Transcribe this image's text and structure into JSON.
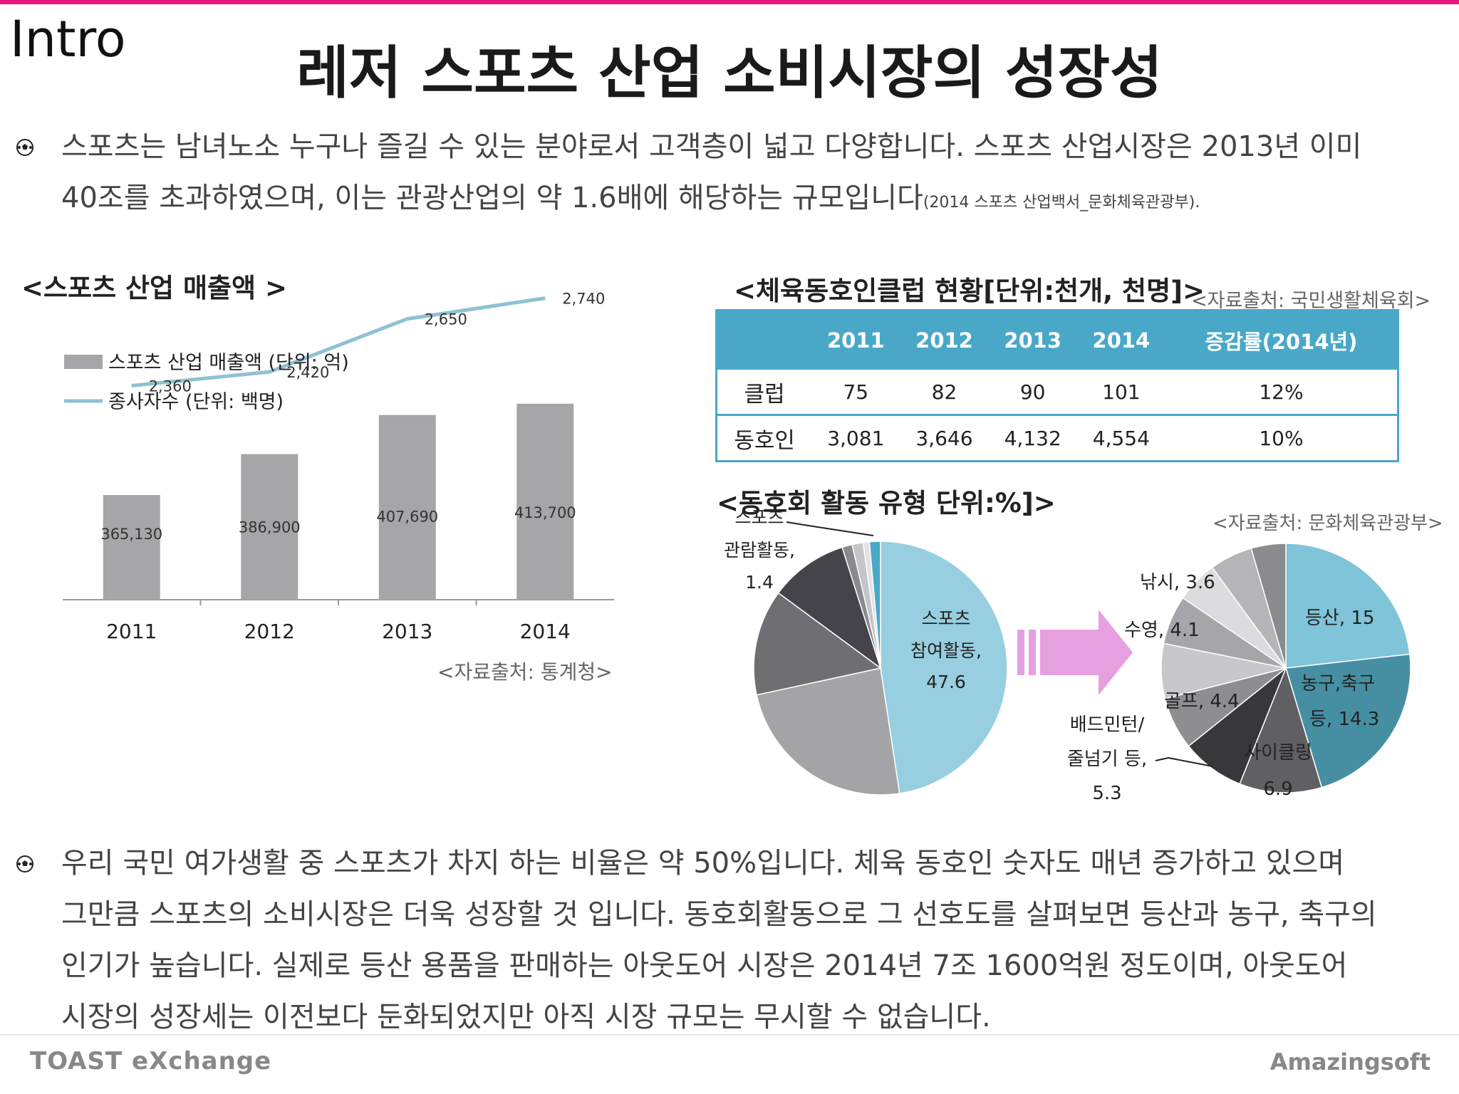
{
  "header": {
    "section_label": "Intro",
    "title": "레저 스포츠 산업 소비시장의 성장성"
  },
  "intro_paragraph": {
    "line1": "스포츠는 남녀노소 누구나 즐길 수 있는 분야로서 고객층이 넓고 다양합니다. 스포츠 산업시장은 2013년 이미",
    "line2": "40조를 초과하였으며, 이는 관광산업의 약 1.6배에 해당하는 규모입니다",
    "source": "(2014 스포츠 산업백서_문화체육관광부).",
    "icon": "soccer-ball-icon"
  },
  "closing_paragraph": {
    "lines": [
      "우리 국민 여가생활 중 스포츠가 차지 하는 비율은 약 50%입니다. 체육 동호인 숫자도 매년 증가하고 있으며",
      "그만큼 스포츠의 소비시장은 더욱 성장할 것 입니다. 동호회활동으로 그 선호도를 살펴보면 등산과 농구, 축구의",
      "인기가 높습니다. 실제로 등산 용품을 판매하는 아웃도어 시장은 2014년 7조 1600억원 정도이며, 아웃도어",
      "시장의 성장세는 이전보다 둔화되었지만 아직 시장 규모는 무시할 수 없습니다."
    ],
    "icon": "soccer-ball-icon"
  },
  "revenue_section": {
    "heading": "<스포츠 산업 매출액 >",
    "source": "<자료출처: 통계청>"
  },
  "clubs_section": {
    "heading": "<체육동호인클럽 현황[단위:천개, 천명]>",
    "source": "<자료출처: 국민생활체육회>",
    "columns": [
      "",
      "2011",
      "2012",
      "2013",
      "2014",
      "증감률(2014년)"
    ],
    "rows": [
      {
        "label": "클럽",
        "values": [
          "75",
          "82",
          "90",
          "101",
          "12%"
        ]
      },
      {
        "label": "동호인",
        "values": [
          "3,081",
          "3,646",
          "4,132",
          "4,554",
          "10%"
        ]
      }
    ],
    "header_color": "#49a8c8"
  },
  "activity_section": {
    "heading": "<동호회 활동 유형 단위:%]>",
    "source": "<자료출처: 문화체육관광부>"
  },
  "chart_data": [
    {
      "type": "bar",
      "categories": [
        "2011",
        "2012",
        "2013",
        "2014"
      ],
      "series": [
        {
          "name": "스포츠 산업 매출액 (단위: 억)",
          "kind": "bar",
          "values": [
            365130,
            386900,
            407690,
            413700
          ],
          "labels": [
            "365,130",
            "386,900",
            "407,690",
            "413,700"
          ],
          "color": "#a6a5a7"
        },
        {
          "name": "종사자수 (단위: 백명)",
          "kind": "line",
          "values": [
            2360,
            2420,
            2650,
            2740
          ],
          "labels": [
            "2,360",
            "2,420",
            "2,650",
            "2,740"
          ],
          "color": "#8ec1d3"
        }
      ],
      "legend": "top-left"
    },
    {
      "type": "pie",
      "slices": [
        {
          "label": "스포츠 참여활동,",
          "value": 47.6,
          "value_label": "47.6",
          "color": "#97cfe0"
        },
        {
          "label": "",
          "value": 24.0,
          "color": "#a4a3a6"
        },
        {
          "label": "",
          "value": 13.5,
          "color": "#6f6e72"
        },
        {
          "label": "",
          "value": 10.0,
          "color": "#45444a"
        },
        {
          "label": "",
          "value": 1.3,
          "color": "#8a898d"
        },
        {
          "label": "",
          "value": 1.4,
          "color": "#c5c4c7"
        },
        {
          "label": "",
          "value": 0.8,
          "color": "#e2e1e3"
        },
        {
          "label": "스포츠 관람활동,",
          "value": 1.4,
          "value_label": "1.4",
          "color": "#4aa9c6"
        }
      ]
    },
    {
      "type": "pie",
      "slices": [
        {
          "label": "등산,",
          "value": 15,
          "value_label": "15",
          "color": "#7fc4d8"
        },
        {
          "label": "농구,축구 등,",
          "value": 14.3,
          "value_label": "14.3",
          "color": "#468fa3"
        },
        {
          "label": "사이클링",
          "value": 6.9,
          "value_label": "6.9",
          "color": "#606064"
        },
        {
          "label": "배드민턴/ 줄넘기 등,",
          "value": 5.3,
          "value_label": "5.3",
          "color": "#38383c"
        },
        {
          "label": "골프,",
          "value": 4.4,
          "value_label": "4.4",
          "color": "#8e8d91"
        },
        {
          "label": "",
          "value": 4.6,
          "color": "#c8c7ca"
        },
        {
          "label": "수영,",
          "value": 4.1,
          "value_label": "4.1",
          "color": "#a6a5a9"
        },
        {
          "label": "",
          "value": 3.5,
          "color": "#dcdbdd"
        },
        {
          "label": "낚시,",
          "value": 3.6,
          "value_label": "3.6",
          "color": "#b5b4b7"
        },
        {
          "label": "",
          "value": 2.9,
          "color": "#8b8a8e"
        }
      ]
    }
  ],
  "footer": {
    "left_logo": "TOAST eXchange",
    "right_logo": "Amazingsoft"
  }
}
